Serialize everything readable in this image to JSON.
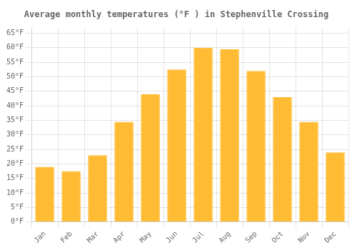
{
  "chart_data": {
    "type": "bar",
    "title": "Average monthly temperatures (°F ) in Stephenville Crossing",
    "categories": [
      "Jan",
      "Feb",
      "Mar",
      "Apr",
      "May",
      "Jun",
      "Jul",
      "Aug",
      "Sep",
      "Oct",
      "Nov",
      "Dec"
    ],
    "values": [
      19,
      17.5,
      23,
      34.5,
      44,
      52.5,
      60,
      59.5,
      52,
      43,
      34.5,
      24
    ],
    "color": "#FFBB33",
    "ylim": [
      0,
      67
    ],
    "yticks": [
      {
        "value": 0,
        "label": "0°F"
      },
      {
        "value": 5,
        "label": "5°F"
      },
      {
        "value": 10,
        "label": "10°F"
      },
      {
        "value": 15,
        "label": "15°F"
      },
      {
        "value": 20,
        "label": "20°F"
      },
      {
        "value": 25,
        "label": "25°F"
      },
      {
        "value": 30,
        "label": "30°F"
      },
      {
        "value": 35,
        "label": "35°F"
      },
      {
        "value": 40,
        "label": "40°F"
      },
      {
        "value": 45,
        "label": "45°F"
      },
      {
        "value": 50,
        "label": "50°F"
      },
      {
        "value": 55,
        "label": "55°F"
      },
      {
        "value": 60,
        "label": "60°F"
      },
      {
        "value": 65,
        "label": "65°F"
      }
    ],
    "grid": true
  }
}
